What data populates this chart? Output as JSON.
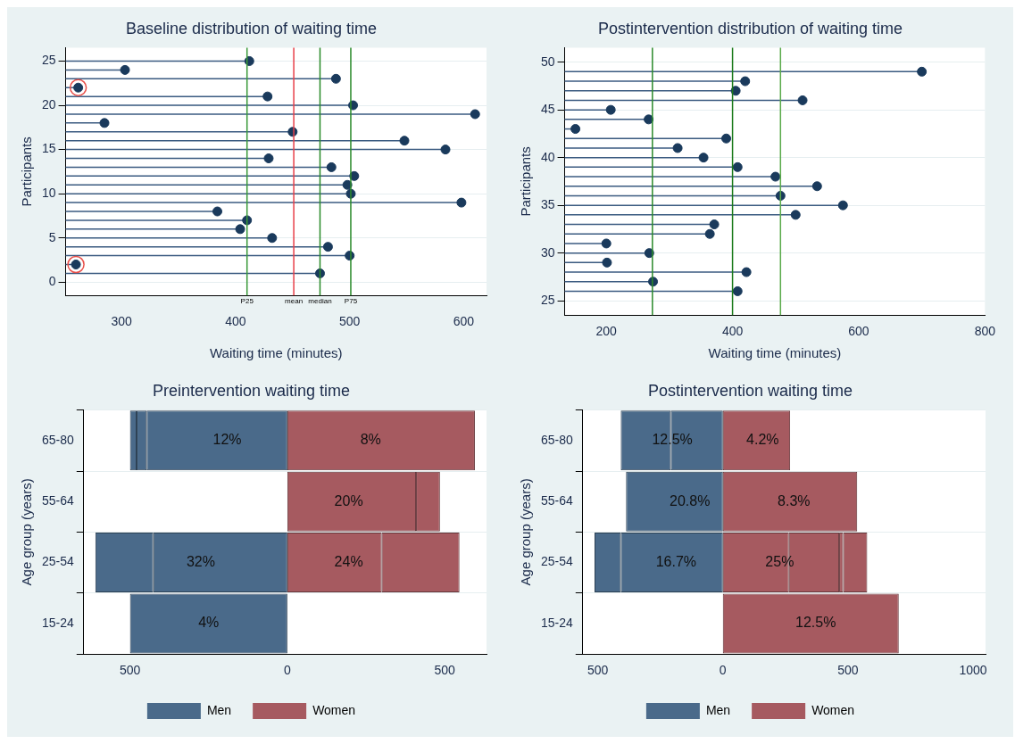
{
  "chart_data": [
    {
      "type": "lollipop",
      "orientation": "horizontal",
      "title": "Baseline distribution of waiting time",
      "xlabel": "Waiting time (minutes)",
      "ylabel": "Participants",
      "marker": "circle",
      "grid": "y",
      "x": [
        25,
        24,
        23,
        22,
        21,
        20,
        19,
        18,
        17,
        16,
        15,
        14,
        13,
        12,
        11,
        10,
        9,
        8,
        7,
        6,
        5,
        4,
        3,
        2,
        1
      ],
      "xlim": [
        251,
        620
      ],
      "xticks": [
        300,
        400,
        500,
        600
      ],
      "ylim": [
        -1.5,
        26.5
      ],
      "yticks": [
        0,
        5,
        10,
        15,
        20,
        25
      ],
      "series": [
        {
          "color": "#1a3a5c",
          "values": [
            412,
            303,
            488,
            262,
            428,
            503,
            610,
            285,
            450,
            548,
            584,
            429,
            484,
            504,
            498,
            501,
            598,
            384,
            410,
            404,
            432,
            481,
            500,
            260,
            474
          ]
        },
        {
          "type": "scatter",
          "color": "#e8504a",
          "x": [
            22,
            2
          ],
          "values": [
            262,
            260
          ]
        }
      ],
      "ref_lines": [
        {
          "axis": "x",
          "value": 410,
          "label": "P25",
          "color": "#3a9a3a"
        },
        {
          "axis": "x",
          "value": 451,
          "label": "mean",
          "color": "#e8404a"
        },
        {
          "axis": "x",
          "value": 474,
          "label": "median",
          "color": "#2a8a2a"
        },
        {
          "axis": "x",
          "value": 501,
          "label": "P75",
          "color": "#2a8a2a"
        }
      ]
    },
    {
      "type": "lollipop",
      "orientation": "horizontal",
      "title": "Postintervention distribution of waiting time",
      "xlabel": "Waiting time (minutes)",
      "ylabel": "Participants",
      "marker": "circle",
      "grid": "y",
      "x": [
        49,
        48,
        47,
        46,
        45,
        44,
        43,
        42,
        41,
        40,
        39,
        38,
        37,
        36,
        35,
        34,
        33,
        32,
        31,
        30,
        29,
        28,
        27,
        26
      ],
      "xlim": [
        134,
        800
      ],
      "xticks": [
        200,
        400,
        600,
        800
      ],
      "ylim": [
        23.5,
        51.5
      ],
      "yticks": [
        25,
        30,
        35,
        40,
        45,
        50
      ],
      "series": [
        {
          "color": "#1a3a5c",
          "values": [
            700,
            420,
            405,
            511,
            207,
            267,
            151,
            390,
            313,
            354,
            408,
            468,
            534,
            476,
            575,
            500,
            371,
            364,
            200,
            268,
            201,
            422,
            274,
            408
          ]
        }
      ],
      "ref_lines": [
        {
          "axis": "x",
          "value": 273,
          "color": "#2a8a2a"
        },
        {
          "axis": "x",
          "value": 400,
          "color": "#1a7a1a"
        },
        {
          "axis": "x",
          "value": 476,
          "color": "#5aaa4a"
        }
      ]
    },
    {
      "type": "bar",
      "orientation": "horizontal",
      "stacked": true,
      "title": "Preintervention waiting time",
      "ylabel": "Age group (years)",
      "legend": "bottom",
      "grid": "y",
      "categories": [
        "65-80",
        "55-64",
        "25-54",
        "15-24"
      ],
      "xlim": [
        -647,
        633
      ],
      "xticks": [
        {
          "value": -500,
          "label": "500"
        },
        0,
        500
      ],
      "annotations": [
        {
          "text": "12%",
          "x": -191,
          "y": "65-80"
        },
        {
          "text": "8%",
          "x": 265,
          "y": "65-80"
        },
        {
          "text": "20%",
          "x": 195,
          "y": "55-64"
        },
        {
          "text": "32%",
          "x": -275,
          "y": "25-54"
        },
        {
          "text": "24%",
          "x": 195,
          "y": "25-54"
        },
        {
          "text": "4%",
          "x": -250,
          "y": "15-24"
        }
      ],
      "series": [
        {
          "name": "Men",
          "color": "#4a6a8a",
          "values": [
            -447,
            null,
            -426,
            -500
          ]
        },
        {
          "color": "#4a6a8a",
          "values": [
            -32,
            null,
            -184,
            null
          ]
        },
        {
          "color": "#4a6a8a",
          "values": [
            -21,
            null,
            null,
            null
          ]
        },
        {
          "name": "Women",
          "color": "#a65a60",
          "values": [
            596,
            409,
            300,
            null
          ]
        },
        {
          "color": "#a65a60",
          "values": [
            null,
            76,
            247,
            null
          ]
        }
      ]
    },
    {
      "type": "bar",
      "orientation": "horizontal",
      "stacked": true,
      "title": "Postintervention waiting time",
      "ylabel": "Age group (years)",
      "legend": "bottom",
      "grid": "y",
      "categories": [
        "65-80",
        "55-64",
        "25-54",
        "15-24"
      ],
      "xlim": [
        -560,
        1050
      ],
      "xticks": [
        {
          "value": -500,
          "label": "500"
        },
        0,
        500,
        1000
      ],
      "annotations": [
        {
          "text": "12.5%",
          "x": -202,
          "y": "65-80"
        },
        {
          "text": "4.2%",
          "x": 159,
          "y": "65-80"
        },
        {
          "text": "20.8%",
          "x": -132,
          "y": "55-64"
        },
        {
          "text": "8.3%",
          "x": 284,
          "y": "55-64"
        },
        {
          "text": "16.7%",
          "x": -187,
          "y": "25-54"
        },
        {
          "text": "25%",
          "x": 227,
          "y": "25-54"
        },
        {
          "text": "12.5%",
          "x": 371,
          "y": "15-24"
        }
      ],
      "series": [
        {
          "name": "Men",
          "color": "#4a6a8a",
          "values": [
            -208,
            -387,
            -408,
            null
          ]
        },
        {
          "color": "#4a6a8a",
          "values": [
            -200,
            null,
            -105,
            null
          ]
        },
        {
          "name": "Women",
          "color": "#a65a60",
          "values": [
            269,
            537,
            264,
            703
          ]
        },
        {
          "color": "#a65a60",
          "values": [
            null,
            null,
            201,
            null
          ]
        },
        {
          "color": "#a65a60",
          "values": [
            null,
            null,
            16,
            null
          ]
        },
        {
          "color": "#a65a60",
          "values": [
            null,
            null,
            96,
            null
          ]
        }
      ]
    }
  ]
}
